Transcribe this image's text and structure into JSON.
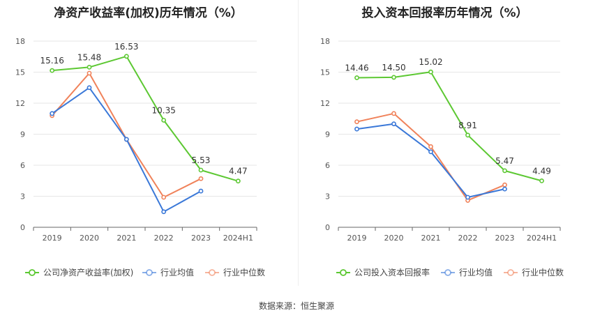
{
  "source": "数据来源：恒生聚源",
  "chart_data": [
    {
      "type": "line",
      "title": "净资产收益率(加权)历年情况（%）",
      "categories": [
        "2019",
        "2020",
        "2021",
        "2022",
        "2023",
        "2024H1"
      ],
      "ylim": [
        0,
        18
      ],
      "yticks": [
        0,
        3,
        6,
        9,
        12,
        15,
        18
      ],
      "grid": true,
      "legend": "bottom",
      "series": [
        {
          "name": "公司净资产收益率(加权)",
          "color": "#5cc832",
          "values": [
            15.16,
            15.48,
            16.53,
            10.35,
            5.53,
            4.47
          ],
          "labels": [
            "15.16",
            "15.48",
            "16.53",
            "10.35",
            "5.53",
            "4.47"
          ]
        },
        {
          "name": "行业均值",
          "color": "#3a78d8",
          "values": [
            11.0,
            13.5,
            8.5,
            1.5,
            3.5,
            null
          ]
        },
        {
          "name": "行业中位数",
          "color": "#f0825a",
          "values": [
            10.8,
            14.9,
            8.5,
            2.9,
            4.7,
            null
          ]
        }
      ]
    },
    {
      "type": "line",
      "title": "投入资本回报率历年情况（%）",
      "categories": [
        "2019",
        "2020",
        "2021",
        "2022",
        "2023",
        "2024H1"
      ],
      "ylim": [
        0,
        18
      ],
      "yticks": [
        0,
        3,
        6,
        9,
        12,
        15,
        18
      ],
      "grid": true,
      "legend": "bottom",
      "series": [
        {
          "name": "公司投入资本回报率",
          "color": "#5cc832",
          "values": [
            14.46,
            14.5,
            15.02,
            8.91,
            5.47,
            4.49
          ],
          "labels": [
            "14.46",
            "14.50",
            "15.02",
            "8.91",
            "5.47",
            "4.49"
          ]
        },
        {
          "name": "行业均值",
          "color": "#3a78d8",
          "values": [
            9.5,
            10.0,
            7.3,
            2.9,
            3.7,
            null
          ]
        },
        {
          "name": "行业中位数",
          "color": "#f0825a",
          "values": [
            10.2,
            11.0,
            7.8,
            2.6,
            4.1,
            null
          ]
        }
      ]
    }
  ]
}
